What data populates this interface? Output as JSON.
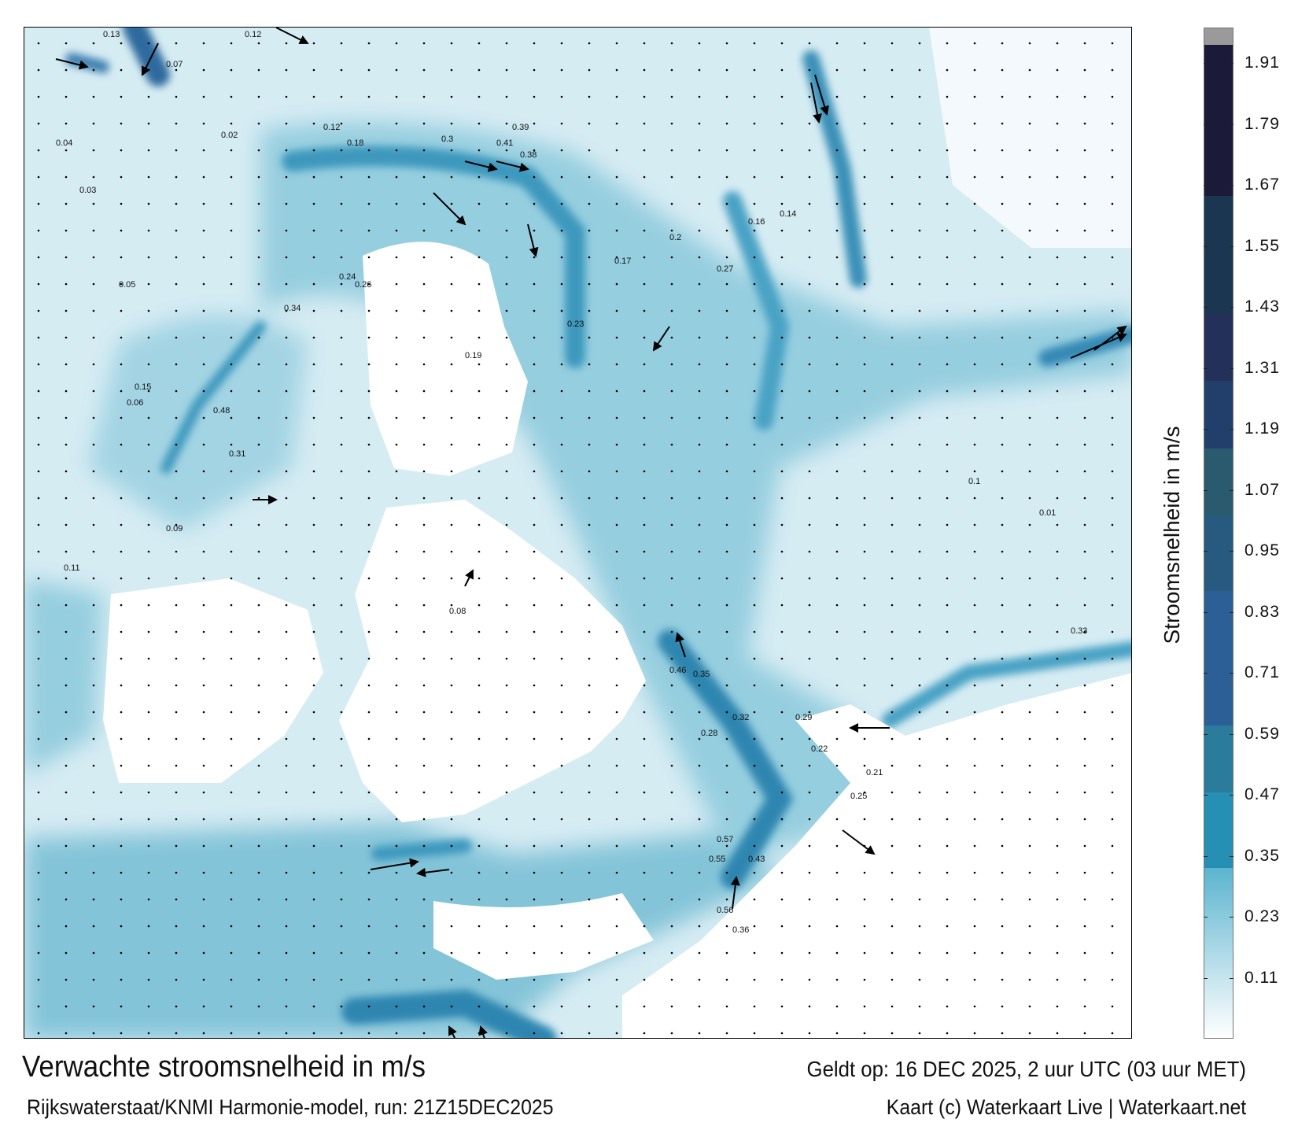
{
  "map": {
    "title": "Verwachte stroomsnelheid in m/s",
    "valid_time": "Geldt op: 16 DEC 2025, 2 uur UTC (03 uur MET)",
    "source": "Rijkswaterstaat/KNMI Harmonie-model, run: 21Z15DEC2025",
    "credit": "Kaart (c) Waterkaart Live | Waterkaart.net",
    "speed_labels": [
      "0.13",
      "0.12",
      "0.07",
      "0.04",
      "0.03",
      "0.02",
      "0.05",
      "0.06",
      "0.12",
      "0.18",
      "0.3",
      "0.39",
      "0.41",
      "0.38",
      "0.24",
      "0.26",
      "0.19",
      "0.17",
      "0.2",
      "0.27",
      "0.16",
      "0.14",
      "0.23",
      "0.31",
      "0.48",
      "0.34",
      "0.15",
      "0.09",
      "0.11",
      "0.08",
      "0.46",
      "0.35",
      "0.32",
      "0.28",
      "0.29",
      "0.57",
      "0.55",
      "0.43",
      "0.56",
      "0.36",
      "0.22",
      "0.25",
      "0.21",
      "0.1",
      "0.01",
      "0.33"
    ]
  },
  "colorbar": {
    "label": "Stroomsnelheid in m/s",
    "ticks": [
      "1.91",
      "1.79",
      "1.67",
      "1.55",
      "1.43",
      "1.31",
      "1.19",
      "1.07",
      "0.95",
      "0.83",
      "0.71",
      "0.59",
      "0.47",
      "0.35",
      "0.23",
      "0.11"
    ],
    "range_ms": [
      0,
      2.0
    ],
    "colors": {
      "low": "#ffffff",
      "mid": "#2a93b8",
      "high": "#1b1a38",
      "land": "#ffffff"
    }
  }
}
